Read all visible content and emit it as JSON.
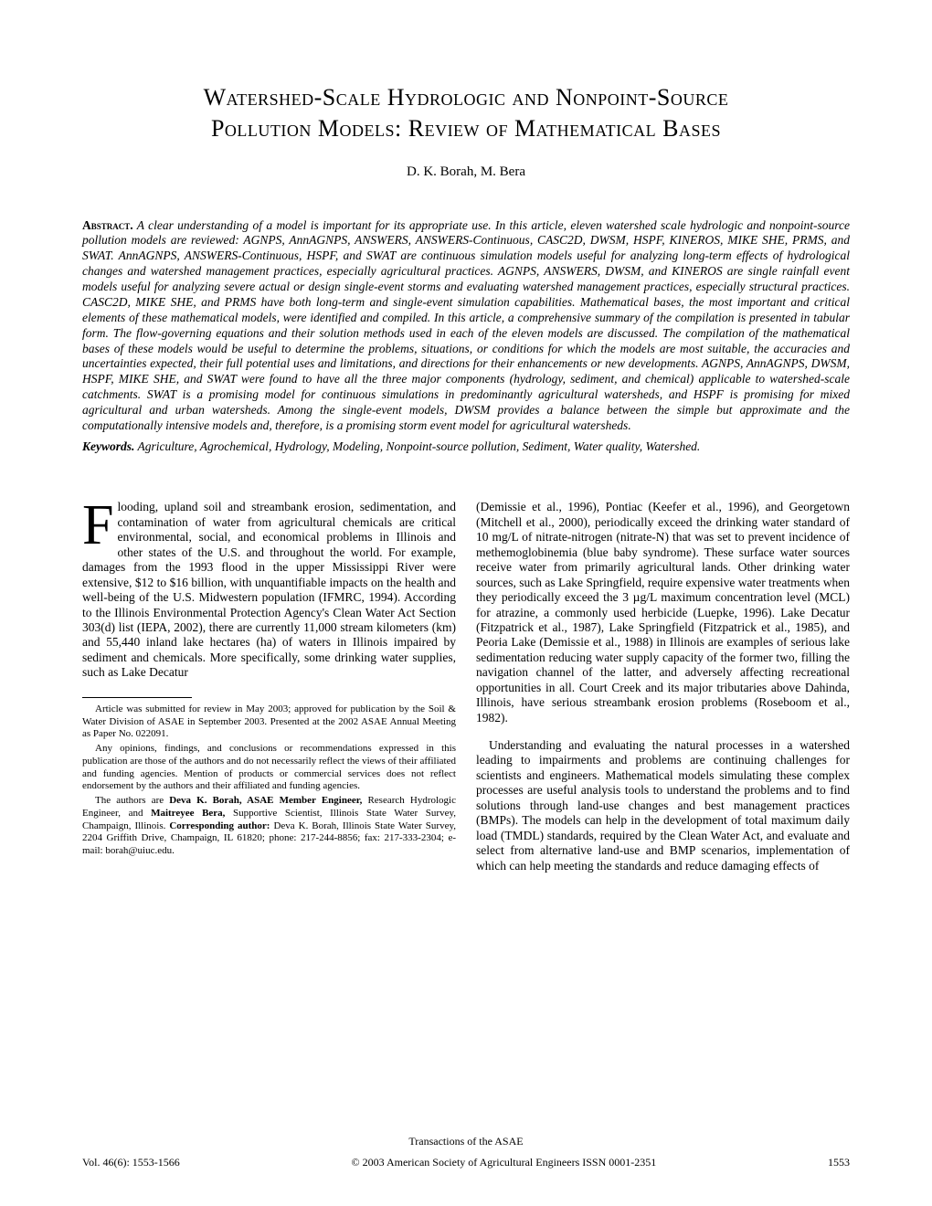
{
  "title_line1": "Watershed-Scale Hydrologic and Nonpoint-Source",
  "title_line2": "Pollution Models: Review of Mathematical Bases",
  "authors": "D. K. Borah,  M. Bera",
  "abstract_label": "Abstract.",
  "abstract_text": " A clear understanding of a model is important for its appropriate use. In this article, eleven watershed scale hydrologic and nonpoint-source pollution models are reviewed: AGNPS, AnnAGNPS, ANSWERS, ANSWERS-Continuous, CASC2D, DWSM, HSPF, KINEROS, MIKE SHE, PRMS, and SWAT. AnnAGNPS, ANSWERS-Continuous, HSPF, and SWAT are continuous simulation models useful for analyzing long-term effects of hydrological changes and watershed management practices, especially agricultural practices. AGNPS, ANSWERS, DWSM, and KINEROS are single rainfall event models useful for analyzing severe actual or design single-event storms and evaluating watershed management practices, especially structural practices. CASC2D, MIKE SHE, and PRMS have both long-term and single-event simulation capabilities. Mathematical bases, the most important and critical elements of these mathematical models, were identified and compiled. In this article, a comprehensive summary of the compilation is presented in tabular form. The flow-governing equations and their solution methods used in each of the eleven models are discussed. The compilation of the mathematical bases of these models would be useful to determine the problems, situations, or conditions for which the models are most suitable, the accuracies and uncertainties expected, their full potential uses and limitations, and directions for their enhancements or new developments. AGNPS, AnnAGNPS, DWSM, HSPF, MIKE SHE, and SWAT were found to have all the three major components (hydrology, sediment, and chemical) applicable to watershed-scale catchments. SWAT is a promising model for continuous simulations in predominantly agricultural watersheds, and HSPF is promising for mixed agricultural and urban watersheds. Among the single-event models, DWSM provides a balance between the simple but approximate and the computationally intensive models and, therefore, is a promising storm event model for agricultural watersheds.",
  "keywords_label": "Keywords.",
  "keywords_text": " Agriculture, Agrochemical, Hydrology, Modeling, Nonpoint-source pollution, Sediment, Water quality, Watershed.",
  "dropcap": "F",
  "body_col1": "looding, upland soil and streambank erosion, sedimentation, and contamination of water from agricultural chemicals are critical environmental, social, and economical problems in Illinois and other states of the U.S. and throughout the world. For example, damages from the 1993 flood in the upper Mississippi River were extensive, $12 to $16 billion, with unquantifiable impacts on the health and well-being of the U.S. Midwestern population (IFMRC, 1994). According to the Illinois Environmental Protection Agency's Clean Water Act Section 303(d) list (IEPA, 2002), there are currently 11,000 stream kilometers (km) and 55,440 inland lake hectares (ha) of waters in Illinois impaired by sediment and chemicals. More specifically, some drinking water supplies, such as Lake Decatur",
  "body_col2_p1": "(Demissie et al., 1996), Pontiac (Keefer et al., 1996), and Georgetown (Mitchell et al., 2000), periodically exceed the drinking water standard of 10 mg/L of nitrate-nitrogen (nitrate-N) that was set to prevent incidence of methemoglobinemia (blue baby syndrome). These surface water sources receive water from primarily agricultural lands. Other drinking water sources, such as Lake Springfield, require expensive water treatments when they periodically exceed the 3 µg/L maximum concentration level (MCL) for atrazine, a commonly used herbicide (Luepke, 1996). Lake Decatur (Fitzpatrick et al., 1987), Lake Springfield (Fitzpatrick et al., 1985), and Peoria Lake (Demissie et al., 1988) in Illinois are examples of serious lake sedimentation reducing water supply capacity of the former two, filling the navigation channel of the latter, and adversely affecting recreational opportunities in all. Court Creek and its major tributaries above Dahinda, Illinois, have serious streambank erosion problems (Roseboom et al., 1982).",
  "body_col2_p2": "Understanding and evaluating the natural processes in a watershed leading to impairments and problems are continuing challenges for scientists and engineers. Mathematical models simulating these complex processes are useful analysis tools to understand the problems and to find solutions through land-use changes and best management practices (BMPs). The models can help in the development of total maximum daily load (TMDL) standards, required by the Clean Water Act, and evaluate and select from alternative land-use and BMP scenarios, implementation of which can help meeting the standards and reduce damaging effects of",
  "footnote1": "Article was submitted for review in May 2003; approved for publication by the Soil & Water Division of ASAE in September 2003. Presented at the 2002 ASAE Annual Meeting as Paper No. 022091.",
  "footnote2": "Any opinions, findings, and conclusions or recommendations expressed in this publication are those of the authors and do not necessarily reflect the views of their affiliated and funding agencies. Mention of products or commercial services does not reflect endorsement by the authors and their affiliated and funding agencies.",
  "footnote3_a": "The authors are ",
  "footnote3_b": "Deva K. Borah, ASAE Member Engineer,",
  "footnote3_c": " Research Hydrologic Engineer, and ",
  "footnote3_d": "Maitreyee Bera,",
  "footnote3_e": " Supportive Scientist, Illinois State Water Survey, Champaign, Illinois. ",
  "footnote3_f": "Corresponding author:",
  "footnote3_g": " Deva K. Borah, Illinois State Water Survey, 2204 Griffith Drive, Champaign, IL 61820; phone: 217-244-8856; fax: 217-333-2304; e-mail: borah@uiuc.edu.",
  "footer_journal": "Transactions of the ASAE",
  "footer_vol": "Vol. 46(6): 1553-1566",
  "footer_copyright": "© 2003 American Society of Agricultural Engineers ISSN 0001-2351",
  "footer_page": "1553"
}
